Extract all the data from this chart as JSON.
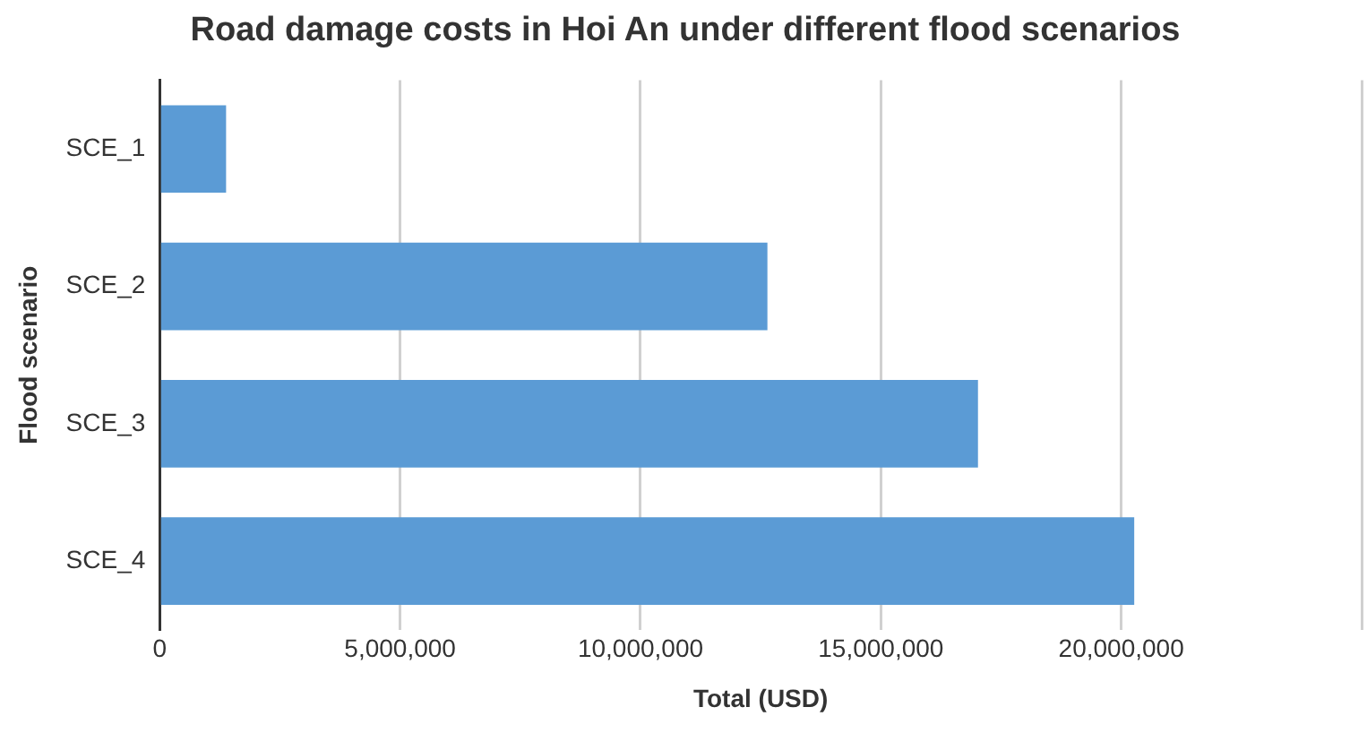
{
  "chart_data": {
    "type": "bar",
    "orientation": "horizontal",
    "title": "Road damage costs in Hoi An under different flood scenarios",
    "xlabel": "Total (USD)",
    "ylabel": "Flood scenario",
    "categories": [
      "SCE_1",
      "SCE_2",
      "SCE_3",
      "SCE_4"
    ],
    "values": [
      1380000,
      12640000,
      17020000,
      20270000
    ],
    "color": "#5b9bd5",
    "xlim": [
      0,
      25000000
    ],
    "xticks": [
      0,
      {
        "value": 5000000,
        "label": "5,000,000"
      },
      {
        "value": 10000000,
        "label": "10,000,000"
      },
      {
        "value": 15000000,
        "label": "15,000,000"
      },
      {
        "value": 20000000,
        "label": "20,000,000"
      },
      {
        "value": 25000000,
        "label": null
      }
    ],
    "grid": "x",
    "legend": false
  }
}
